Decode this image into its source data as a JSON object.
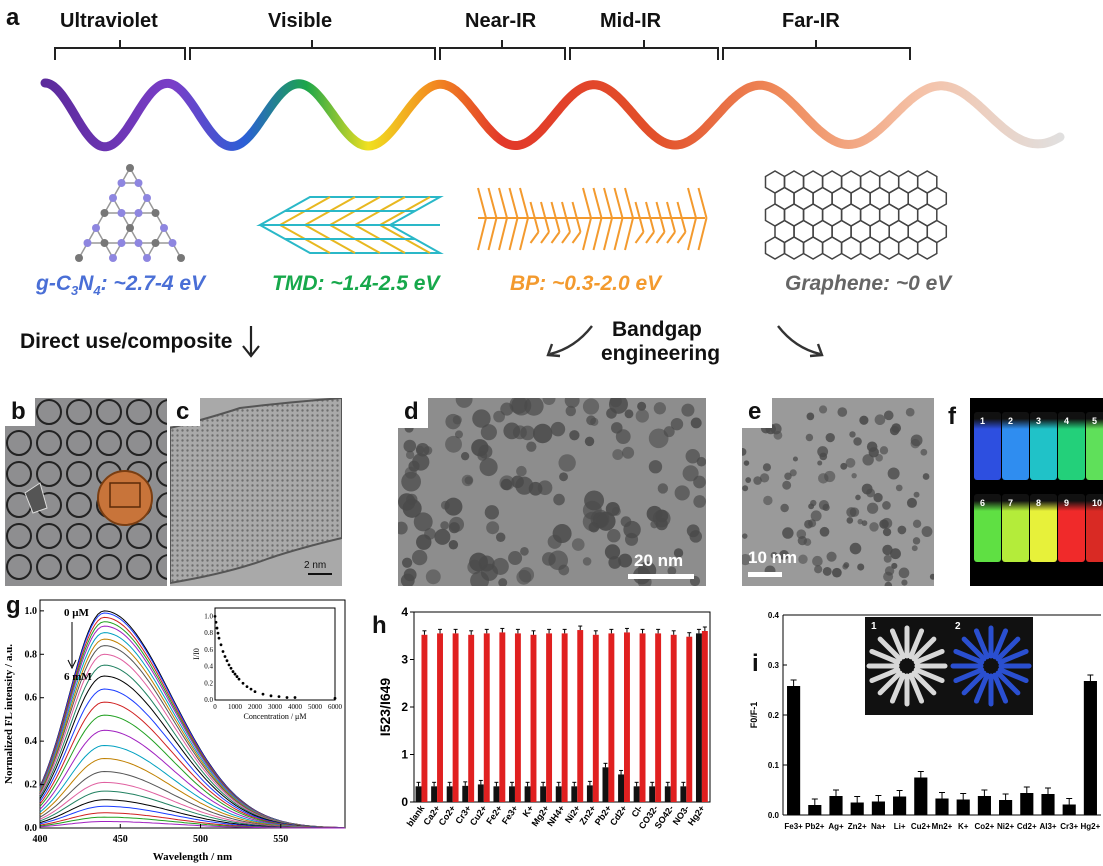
{
  "panel_labels": {
    "a": "a",
    "b": "b",
    "c": "c",
    "d": "d",
    "e": "e",
    "f": "f",
    "g": "g",
    "h": "h",
    "i": "i"
  },
  "spectrum_bands": [
    "Ultraviolet",
    "Visible",
    "Near-IR",
    "Mid-IR",
    "Far-IR"
  ],
  "materials": {
    "gcn": {
      "name": "g-C",
      "sub3": "3",
      "n": "N",
      "sub4": "4",
      "gap": ": ~2.7-4 eV",
      "color": "#4a6fd6"
    },
    "tmd": {
      "label": "TMD: ~1.4-2.5 eV",
      "color": "#17a84b"
    },
    "bp": {
      "label": "BP: ~0.3-2.0 eV",
      "color": "#f39a2e"
    },
    "graphene": {
      "label": "Graphene: ~0 eV",
      "color": "#666666"
    }
  },
  "headers": {
    "direct": "Direct use/composite",
    "bandgap1": "Bandgap",
    "bandgap2": "engineering"
  },
  "scalebars": {
    "c": "2 nm",
    "d": "20 nm",
    "e": "10 nm"
  },
  "vials": [
    {
      "n": "1",
      "color": "#2d4fe0"
    },
    {
      "n": "2",
      "color": "#2f8df0"
    },
    {
      "n": "3",
      "color": "#20c2c8"
    },
    {
      "n": "4",
      "color": "#23d07a"
    },
    {
      "n": "5",
      "color": "#5fe05a"
    },
    {
      "n": "6",
      "color": "#5fe043"
    },
    {
      "n": "7",
      "color": "#b4ec3a"
    },
    {
      "n": "8",
      "color": "#e7f13a"
    },
    {
      "n": "9",
      "color": "#f02a2a"
    },
    {
      "n": "10",
      "color": "#d92a24"
    }
  ],
  "chart_data": [
    {
      "type": "line",
      "panel": "g",
      "xlabel": "Wavelength / nm",
      "ylabel": "Normalized FL intensity / a.u.",
      "xlim": [
        400,
        590
      ],
      "ylim": [
        0,
        1.05
      ],
      "xticks": [
        "400",
        "450",
        "500",
        "550"
      ],
      "yticks": [
        "0.0",
        "0.2",
        "0.4",
        "0.6",
        "0.8",
        "1.0"
      ],
      "annotations": [
        "0 μM",
        "6 mM"
      ],
      "peak_wavelength": 440,
      "series_peaks": [
        1.0,
        0.99,
        0.97,
        0.95,
        0.93,
        0.9,
        0.87,
        0.84,
        0.8,
        0.75,
        0.7,
        0.64,
        0.58,
        0.52,
        0.45,
        0.38,
        0.32,
        0.26,
        0.21,
        0.17,
        0.13,
        0.1,
        0.07,
        0.05,
        0.03
      ],
      "inset": {
        "xlabel": "Concentration / μM",
        "ylabel": "I/I0",
        "xticks": [
          "0",
          "1000",
          "2000",
          "3000",
          "4000",
          "5000",
          "6000"
        ],
        "yticks": [
          "0.0",
          "0.2",
          "0.4",
          "0.6",
          "0.8",
          "1.0"
        ],
        "xlim": [
          0,
          6000
        ],
        "ylim": [
          0,
          1.1
        ],
        "x": [
          0,
          50,
          100,
          150,
          200,
          300,
          400,
          500,
          600,
          700,
          800,
          900,
          1000,
          1100,
          1200,
          1400,
          1600,
          1800,
          2000,
          2400,
          2800,
          3200,
          3600,
          4000,
          6000
        ],
        "y": [
          1.0,
          0.93,
          0.86,
          0.8,
          0.74,
          0.66,
          0.58,
          0.52,
          0.47,
          0.42,
          0.38,
          0.34,
          0.31,
          0.28,
          0.25,
          0.2,
          0.16,
          0.13,
          0.1,
          0.07,
          0.05,
          0.04,
          0.03,
          0.03,
          0.02
        ]
      }
    },
    {
      "type": "bar",
      "panel": "h",
      "ylabel": "I523/I649",
      "ylim": [
        0,
        4
      ],
      "yticks": [
        "0",
        "1",
        "2",
        "3",
        "4"
      ],
      "categories": [
        "blank",
        "Ca2+",
        "Co2+",
        "Cr3+",
        "Cu2+",
        "Fe2+",
        "Fe3+",
        "K+",
        "Mg2+",
        "NH4+",
        "Ni2+",
        "Zn2+",
        "Pb2+",
        "Cd2+",
        "Cl-",
        "CO32-",
        "SO42-",
        "NO3-",
        "Hg2+"
      ],
      "series": [
        {
          "values": [
            0.33,
            0.33,
            0.33,
            0.34,
            0.37,
            0.33,
            0.33,
            0.33,
            0.33,
            0.33,
            0.33,
            0.35,
            0.73,
            0.58,
            0.33,
            0.33,
            0.33,
            0.33,
            3.55
          ],
          "color": "#111111"
        },
        {
          "values": [
            3.52,
            3.55,
            3.55,
            3.52,
            3.55,
            3.57,
            3.55,
            3.52,
            3.55,
            3.55,
            3.62,
            3.52,
            3.55,
            3.57,
            3.55,
            3.55,
            3.52,
            3.48,
            3.6
          ],
          "color": "#e02020"
        }
      ]
    },
    {
      "type": "bar",
      "panel": "i",
      "ylabel": "F0/F-1",
      "ylim": [
        0,
        0.4
      ],
      "yticks": [
        "0.0",
        "0.1",
        "0.2",
        "0.3",
        "0.4"
      ],
      "categories": [
        "Fe3+",
        "Pb2+",
        "Ag+",
        "Zn2+",
        "Na+",
        "Li+",
        "Cu2+",
        "Mn2+",
        "K+",
        "Co2+",
        "Ni2+",
        "Cd2+",
        "Al3+",
        "Cr3+",
        "Hg2+"
      ],
      "values": [
        0.258,
        0.02,
        0.038,
        0.025,
        0.027,
        0.037,
        0.075,
        0.033,
        0.031,
        0.038,
        0.03,
        0.044,
        0.042,
        0.021,
        0.268
      ],
      "inset_labels": [
        "1",
        "2"
      ]
    }
  ]
}
